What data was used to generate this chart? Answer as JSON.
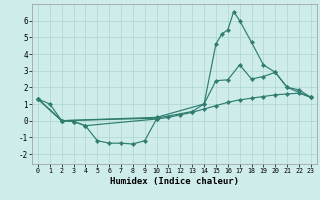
{
  "xlabel": "Humidex (Indice chaleur)",
  "background_color": "#ceecea",
  "line_color": "#2e7d6e",
  "grid_color": "#b0d4d0",
  "xlim": [
    -0.5,
    23.5
  ],
  "ylim": [
    -2.6,
    7.0
  ],
  "xticks": [
    0,
    1,
    2,
    3,
    4,
    5,
    6,
    7,
    8,
    9,
    10,
    11,
    12,
    13,
    14,
    15,
    16,
    17,
    18,
    19,
    20,
    21,
    22,
    23
  ],
  "yticks": [
    -2,
    -1,
    0,
    1,
    2,
    3,
    4,
    5,
    6
  ],
  "line_dip_x": [
    0,
    1,
    2,
    3,
    4,
    5,
    6,
    7,
    8,
    9,
    10
  ],
  "line_dip_y": [
    1.3,
    1.0,
    0.0,
    -0.05,
    -0.3,
    -1.2,
    -1.35,
    -1.35,
    -1.4,
    -1.2,
    0.1
  ],
  "line_flat_x": [
    0,
    2,
    3,
    4,
    10,
    11,
    12,
    13,
    14,
    15,
    16,
    17,
    18,
    19,
    20,
    21,
    22,
    23
  ],
  "line_flat_y": [
    1.3,
    0.0,
    -0.05,
    -0.3,
    0.1,
    0.2,
    0.35,
    0.5,
    0.7,
    0.9,
    1.1,
    1.25,
    1.35,
    1.45,
    1.55,
    1.6,
    1.65,
    1.4
  ],
  "line_mid_x": [
    0,
    2,
    10,
    14,
    15,
    16,
    17,
    18,
    19,
    20,
    21,
    22,
    23
  ],
  "line_mid_y": [
    1.3,
    0.0,
    0.2,
    1.0,
    2.4,
    2.45,
    3.35,
    2.5,
    2.65,
    2.9,
    2.0,
    1.85,
    1.4
  ],
  "line_peak_x": [
    0,
    2,
    10,
    13,
    14,
    15,
    15.5,
    16,
    16.5,
    17,
    18,
    19,
    20,
    21,
    23
  ],
  "line_peak_y": [
    1.3,
    0.0,
    0.15,
    0.55,
    1.0,
    4.6,
    5.2,
    5.45,
    6.55,
    6.0,
    4.7,
    3.35,
    2.9,
    2.0,
    1.4
  ]
}
